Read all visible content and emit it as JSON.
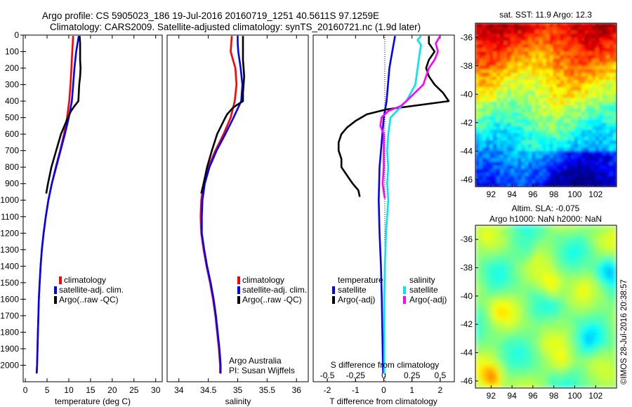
{
  "header": {
    "line1": "Argo profile: CS 5905023_186 19-Jul-2016 20160719_1251 40.5611S 97.1259E",
    "line2": "Climatology: CARS2009. Satellite-adjusted climatology: synTS_20160721.nc (1.9d later)"
  },
  "colors": {
    "climatology": "#ff0000",
    "satellite": "#0000ff",
    "argo": "#000000",
    "sal_satellite": "#00e5ee",
    "sal_argo": "#ff00ff"
  },
  "footer": {
    "stamp": "©IMOS 28-Jul-2016 20:38:57",
    "org": "Argo Australia",
    "pi": "PI: Susan Wijffels"
  },
  "chart_data": [
    {
      "type": "line",
      "xlabel": "temperature (deg C)",
      "ylabel": "",
      "xlim": [
        -0.5,
        31.5
      ],
      "ylim": [
        2100,
        0
      ],
      "xticks": [
        "0",
        "5",
        "10",
        "15",
        "20",
        "25",
        "30"
      ],
      "yticks": [
        "0",
        "100",
        "200",
        "300",
        "400",
        "500",
        "600",
        "700",
        "800",
        "900",
        "1000",
        "1100",
        "1200",
        "1300",
        "1400",
        "1500",
        "1600",
        "1700",
        "1800",
        "1900",
        "2000"
      ],
      "legend": [
        "climatology",
        "satellite-adj. clim.",
        "Argo(..raw -QC)"
      ],
      "legend_position": "bottom-right",
      "series": [
        {
          "name": "climatology",
          "depth": [
            5,
            100,
            200,
            300,
            400,
            500,
            600,
            700,
            800,
            900,
            1000,
            1100,
            1200,
            1300,
            1400,
            1500,
            1600,
            1700,
            1800,
            1900,
            2000,
            2050
          ],
          "values": [
            11.0,
            10.8,
            10.6,
            10.4,
            10.1,
            9.6,
            8.9,
            8.0,
            7.0,
            6.1,
            5.3,
            4.7,
            4.2,
            3.8,
            3.5,
            3.3,
            3.1,
            3.0,
            2.9,
            2.8,
            2.7,
            2.6
          ]
        },
        {
          "name": "satellite-adj. clim.",
          "depth": [
            5,
            100,
            200,
            300,
            400,
            500,
            600,
            700,
            800,
            900,
            1000,
            1100,
            1200,
            1300,
            1400,
            1500,
            1600,
            1700,
            1800,
            1900,
            2000,
            2050
          ],
          "values": [
            12.3,
            11.7,
            11.3,
            11.0,
            10.7,
            10.0,
            9.1,
            8.1,
            7.1,
            6.1,
            5.3,
            4.7,
            4.2,
            3.8,
            3.5,
            3.3,
            3.1,
            3.0,
            2.9,
            2.8,
            2.7,
            2.6
          ]
        },
        {
          "name": "Argo(..raw -QC)",
          "depth": [
            5,
            50,
            100,
            150,
            200,
            250,
            300,
            350,
            400,
            430,
            460,
            500,
            600,
            700,
            800,
            900,
            960
          ],
          "values": [
            12.5,
            12.6,
            12.6,
            12.6,
            12.7,
            12.6,
            12.4,
            12.3,
            12.2,
            11.3,
            10.5,
            9.8,
            8.2,
            7.1,
            6.0,
            5.2,
            4.8
          ]
        }
      ]
    },
    {
      "type": "line",
      "xlabel": "salinity",
      "ylabel": "",
      "xlim": [
        33.8,
        36.2
      ],
      "ylim": [
        2100,
        0
      ],
      "xticks": [
        "34",
        "34.5",
        "35",
        "35.5",
        "36"
      ],
      "legend": [
        "climatology",
        "satellite-adj. clim.",
        "Argo(..raw -QC)"
      ],
      "legend_position": "bottom-right",
      "series": [
        {
          "name": "climatology",
          "depth": [
            5,
            50,
            100,
            150,
            200,
            300,
            400,
            500,
            600,
            700,
            800,
            900,
            1000,
            1100,
            1200,
            1300,
            1400,
            1500,
            1600,
            1700,
            1800,
            1900,
            2000,
            2050
          ],
          "values": [
            34.9,
            34.89,
            34.88,
            34.92,
            34.96,
            34.98,
            34.95,
            34.88,
            34.76,
            34.62,
            34.5,
            34.42,
            34.38,
            34.37,
            34.38,
            34.42,
            34.47,
            34.53,
            34.58,
            34.62,
            34.65,
            34.68,
            34.7,
            34.7
          ]
        },
        {
          "name": "satellite-adj. clim.",
          "depth": [
            5,
            50,
            100,
            200,
            300,
            400,
            500,
            600,
            700,
            800,
            900,
            1000,
            1100,
            1200,
            1300,
            1400,
            1500,
            1600,
            1700,
            1800,
            1900,
            2000,
            2050
          ],
          "values": [
            35.0,
            35.0,
            35.01,
            35.05,
            35.08,
            35.06,
            34.93,
            34.79,
            34.64,
            34.52,
            34.44,
            34.4,
            34.39,
            34.39,
            34.43,
            34.48,
            34.54,
            34.59,
            34.63,
            34.66,
            34.69,
            34.71,
            34.71
          ]
        },
        {
          "name": "Argo(..raw -QC)",
          "depth": [
            5,
            50,
            100,
            150,
            200,
            250,
            300,
            350,
            400,
            420,
            440,
            460,
            480,
            500,
            550,
            600,
            700,
            800,
            900,
            960
          ],
          "values": [
            35.09,
            35.09,
            35.09,
            35.09,
            35.1,
            35.11,
            35.1,
            35.09,
            35.09,
            35.0,
            34.92,
            34.87,
            34.82,
            34.79,
            34.72,
            34.65,
            34.56,
            34.48,
            34.42,
            34.38
          ]
        }
      ]
    },
    {
      "type": "line",
      "xlabel": "T difference from climatology",
      "x2label": "S difference from climatology",
      "xlim": [
        -2.5,
        2.5
      ],
      "x2lim": [
        -0.625,
        0.625
      ],
      "ylim": [
        2100,
        0
      ],
      "xticks": [
        "-2",
        "-1",
        "0",
        "1",
        "2"
      ],
      "x2ticks": [
        "-0.5",
        "-0.25",
        "0",
        "0.25",
        "0.5"
      ],
      "legend_headers": [
        "temperature",
        "salinity"
      ],
      "legend": [
        "satellite",
        "Argo(-adj)",
        "satellite",
        "Argo(-adj)"
      ],
      "legend_position": "bottom",
      "series": [
        {
          "name": "satellite",
          "quantity": "T",
          "depth": [
            5,
            100,
            200,
            300,
            400,
            500,
            600,
            700,
            800,
            1000,
            1200,
            1400,
            1600,
            1800,
            2000,
            2050
          ],
          "values": [
            0.4,
            0.3,
            0.2,
            0.15,
            0.1,
            0.0,
            -0.05,
            -0.1,
            -0.15,
            -0.18,
            -0.15,
            -0.1,
            -0.07,
            -0.05,
            -0.03,
            -0.02
          ]
        },
        {
          "name": "Argo(-adj)",
          "quantity": "T",
          "depth": [
            5,
            50,
            100,
            150,
            200,
            250,
            300,
            350,
            400,
            450,
            480,
            520,
            560,
            600,
            650,
            700,
            750,
            800,
            850,
            900,
            940,
            980
          ],
          "values": [
            1.6,
            1.6,
            1.8,
            1.6,
            1.5,
            1.6,
            1.8,
            2.1,
            2.3,
            0.1,
            -0.6,
            -1.0,
            -1.3,
            -1.5,
            -1.6,
            -1.6,
            -1.5,
            -1.5,
            -1.3,
            -1.1,
            -0.9,
            -0.85
          ]
        },
        {
          "name": "satellite",
          "quantity": "S",
          "depth": [
            5,
            30,
            60,
            100,
            200,
            300,
            400,
            500,
            600,
            700,
            800,
            900,
            1000,
            1200,
            1400,
            1600,
            1800,
            2000,
            2050
          ],
          "values": [
            0.33,
            0.3,
            0.33,
            0.32,
            0.3,
            0.28,
            0.2,
            0.06,
            0.04,
            0.03,
            0.04,
            0.03,
            0.04,
            0.02,
            0.01,
            0.005,
            0.005,
            0.005,
            0.005
          ]
        },
        {
          "name": "Argo(-adj)",
          "quantity": "S",
          "depth": [
            5,
            50,
            100,
            150,
            200,
            300,
            400,
            430,
            460,
            500,
            550,
            600,
            700,
            800,
            900,
            950,
            990
          ],
          "values": [
            0.5,
            0.46,
            0.48,
            0.45,
            0.4,
            0.35,
            0.2,
            0.15,
            0.04,
            -0.02,
            -0.03,
            0.0,
            0.0,
            0.0,
            -0.01,
            0.0,
            0.01
          ]
        }
      ]
    },
    {
      "type": "heatmap",
      "title": "sat. SST: 11.9  Argo: 12.3",
      "xlim": [
        90.5,
        104
      ],
      "ylim": [
        -46.5,
        -35
      ],
      "xticks": [
        "92",
        "94",
        "96",
        "98",
        "100",
        "102"
      ],
      "yticks": [
        "-36",
        "-38",
        "-40",
        "-42",
        "-44",
        "-46"
      ],
      "marker": {
        "x": 97.1259,
        "y": -40.5611
      }
    },
    {
      "type": "heatmap",
      "title": "Altim. SLA: -0.075",
      "subtitle": "Argo h1000: NaN  h2000: NaN",
      "xlim": [
        90.5,
        104
      ],
      "ylim": [
        -46.5,
        -35
      ],
      "xticks": [
        "92",
        "94",
        "96",
        "98",
        "100",
        "102"
      ],
      "yticks": [
        "-36",
        "-38",
        "-40",
        "-42",
        "-44",
        "-46"
      ]
    }
  ]
}
